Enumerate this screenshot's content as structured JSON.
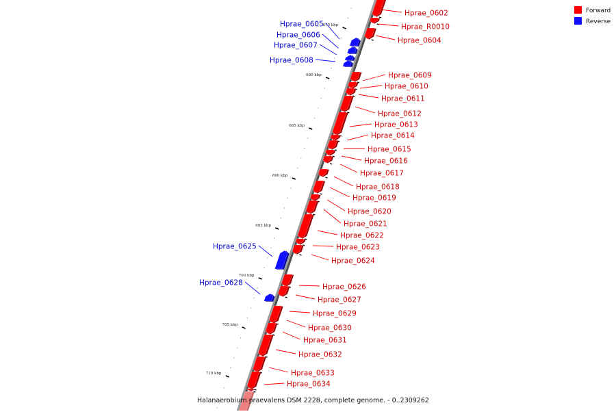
{
  "legend": [
    {
      "label": "Forward",
      "color": "#ff0000"
    },
    {
      "label": "Reverse",
      "color": "#1010ff"
    }
  ],
  "caption": "Halanaerobium praevalens DSM 2228, complete genome. - 0..2309262",
  "colors": {
    "forward": "#ff0000",
    "reverse": "#1010ff",
    "highlight": "#f08080",
    "axis": "#808080"
  },
  "scale": {
    "unit": "kbp",
    "ticks": [
      {
        "label": "675 kbp"
      },
      {
        "label": "680 kbp"
      },
      {
        "label": "685 kbp"
      },
      {
        "label": "690 kbp"
      },
      {
        "label": "695 kbp"
      },
      {
        "label": "700 kbp"
      },
      {
        "label": "705 kbp"
      },
      {
        "label": "710 kbp"
      }
    ]
  },
  "genes": [
    {
      "name": "Hprae_0602",
      "strand": "forward"
    },
    {
      "name": "Hprae_R0010",
      "strand": "forward"
    },
    {
      "name": "Hprae_0604",
      "strand": "forward"
    },
    {
      "name": "Hprae_0605",
      "strand": "reverse"
    },
    {
      "name": "Hprae_0606",
      "strand": "reverse"
    },
    {
      "name": "Hprae_0607",
      "strand": "reverse"
    },
    {
      "name": "Hprae_0608",
      "strand": "reverse"
    },
    {
      "name": "Hprae_0609",
      "strand": "forward"
    },
    {
      "name": "Hprae_0610",
      "strand": "forward"
    },
    {
      "name": "Hprae_0611",
      "strand": "forward"
    },
    {
      "name": "Hprae_0612",
      "strand": "forward"
    },
    {
      "name": "Hprae_0613",
      "strand": "forward"
    },
    {
      "name": "Hprae_0614",
      "strand": "forward"
    },
    {
      "name": "Hprae_0615",
      "strand": "forward"
    },
    {
      "name": "Hprae_0616",
      "strand": "forward"
    },
    {
      "name": "Hprae_0617",
      "strand": "forward"
    },
    {
      "name": "Hprae_0618",
      "strand": "forward"
    },
    {
      "name": "Hprae_0619",
      "strand": "forward"
    },
    {
      "name": "Hprae_0620",
      "strand": "forward"
    },
    {
      "name": "Hprae_0621",
      "strand": "forward"
    },
    {
      "name": "Hprae_0622",
      "strand": "forward"
    },
    {
      "name": "Hprae_0623",
      "strand": "forward"
    },
    {
      "name": "Hprae_0624",
      "strand": "forward"
    },
    {
      "name": "Hprae_0625",
      "strand": "reverse"
    },
    {
      "name": "Hprae_0626",
      "strand": "forward"
    },
    {
      "name": "Hprae_0627",
      "strand": "forward"
    },
    {
      "name": "Hprae_0628",
      "strand": "reverse"
    },
    {
      "name": "Hprae_0629",
      "strand": "forward"
    },
    {
      "name": "Hprae_0630",
      "strand": "forward"
    },
    {
      "name": "Hprae_0631",
      "strand": "forward"
    },
    {
      "name": "Hprae_0632",
      "strand": "forward"
    },
    {
      "name": "Hprae_0633",
      "strand": "forward"
    },
    {
      "name": "Hprae_0634",
      "strand": "forward"
    },
    {
      "name": "",
      "strand": "forward",
      "highlight": true
    }
  ]
}
